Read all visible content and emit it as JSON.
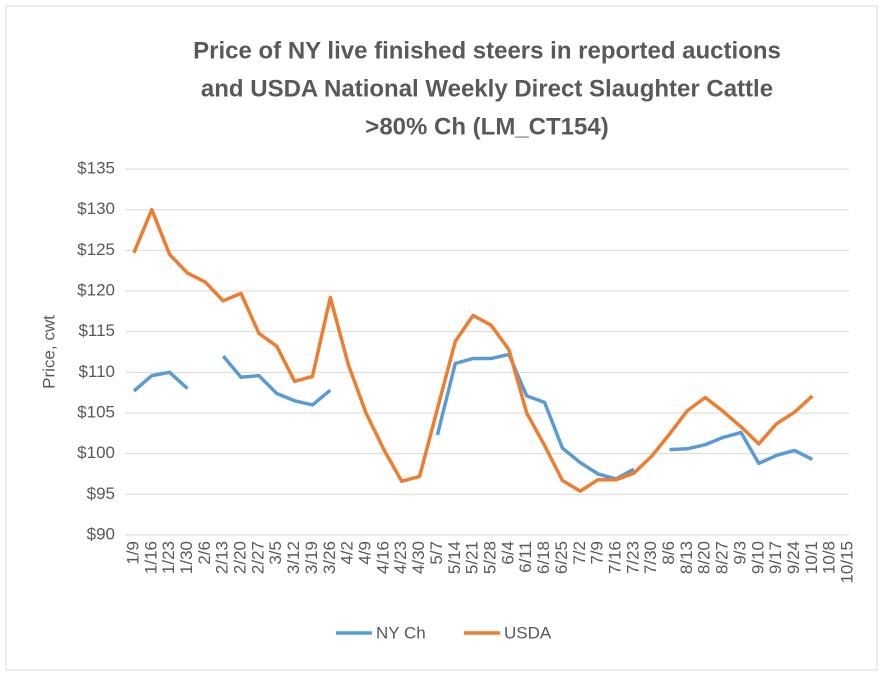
{
  "chart_data": {
    "type": "line",
    "title": [
      "Price of NY live finished steers in reported auctions",
      "and USDA National Weekly Direct Slaughter Cattle",
      ">80% Ch (LM_CT154)"
    ],
    "y_label": "Price, cwt",
    "categories": [
      "1/9",
      "1/16",
      "1/23",
      "1/30",
      "2/6",
      "2/13",
      "2/20",
      "2/27",
      "3/5",
      "3/12",
      "3/19",
      "3/26",
      "4/2",
      "4/9",
      "4/16",
      "4/23",
      "4/30",
      "5/7",
      "5/14",
      "5/21",
      "5/28",
      "6/4",
      "6/11",
      "6/18",
      "6/25",
      "7/2",
      "7/9",
      "7/16",
      "7/23",
      "7/30",
      "8/6",
      "8/13",
      "8/20",
      "8/27",
      "9/3",
      "9/10",
      "9/17",
      "9/24",
      "10/1",
      "10/8",
      "10/15"
    ],
    "series": [
      {
        "name": "NY Ch",
        "color": "#5b9bd5",
        "values": [
          107.7,
          109.6,
          110,
          108,
          null,
          112,
          109.4,
          109.6,
          107.4,
          106.5,
          106,
          107.8,
          null,
          null,
          null,
          null,
          null,
          102.3,
          111.1,
          111.7,
          111.7,
          112.2,
          107.1,
          106.3,
          100.7,
          98.9,
          97.5,
          96.9,
          98.1,
          null,
          100.5,
          100.6,
          101.1,
          102,
          102.6,
          98.8,
          99.8,
          100.4,
          99.3,
          null,
          null
        ]
      },
      {
        "name": "USDA",
        "color": "#ed7d31",
        "values": [
          124.7,
          130,
          124.5,
          122.2,
          121.1,
          118.8,
          119.7,
          114.8,
          113.2,
          108.9,
          109.5,
          119.2,
          111,
          105,
          100.5,
          96.6,
          97.2,
          105.5,
          113.8,
          117,
          115.8,
          112.8,
          105,
          101,
          96.7,
          95.4,
          96.8,
          96.8,
          97.6,
          99.7,
          102.4,
          105.3,
          106.9,
          105.2,
          103.3,
          101.2,
          103.7,
          105.1,
          107.1,
          null,
          null
        ]
      }
    ],
    "ylim": [
      90,
      135
    ],
    "yticks": [
      {
        "value": 90,
        "label": "$90"
      },
      {
        "value": 95,
        "label": "$95"
      },
      {
        "value": 100,
        "label": "$100"
      },
      {
        "value": 105,
        "label": "$105"
      },
      {
        "value": 110,
        "label": "$110"
      },
      {
        "value": 115,
        "label": "$115"
      },
      {
        "value": 120,
        "label": "$120"
      },
      {
        "value": 125,
        "label": "$125"
      },
      {
        "value": 130,
        "label": "$130"
      },
      {
        "value": 135,
        "label": "$135"
      }
    ],
    "grid": true,
    "legend": "bottom"
  }
}
